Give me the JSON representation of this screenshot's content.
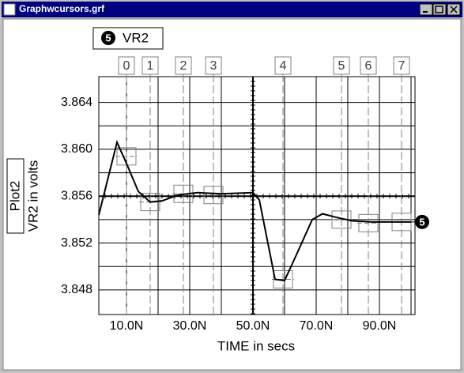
{
  "window": {
    "title": "Graphwcursors.grf"
  },
  "chart_data": {
    "type": "line",
    "legend_label": "VR2",
    "plot_label": "Plot2",
    "xlabel": "TIME in secs",
    "ylabel": "VR2 in volts",
    "xlim": [
      1.25,
      101.25
    ],
    "ylim": [
      3.8459,
      3.8662
    ],
    "xticks": [
      {
        "value": 10,
        "label": "10.0N"
      },
      {
        "value": 30,
        "label": "30.0N"
      },
      {
        "value": 50,
        "label": "50.0N"
      },
      {
        "value": 70,
        "label": "70.0N"
      },
      {
        "value": 90,
        "label": "90.0N"
      }
    ],
    "yticks": [
      {
        "value": 3.848,
        "label": "3.848"
      },
      {
        "value": 3.852,
        "label": "3.852"
      },
      {
        "value": 3.856,
        "label": "3.856"
      },
      {
        "value": 3.86,
        "label": "3.860"
      },
      {
        "value": 3.864,
        "label": "3.864"
      }
    ],
    "x_minor_grid": [
      20,
      40,
      60,
      80,
      100
    ],
    "y_minor_grid": [
      3.85,
      3.854,
      3.858,
      3.862
    ],
    "x_axis_at": 50,
    "y_axis_at": 3.856,
    "grid": true,
    "series": [
      {
        "name": "VR2",
        "marker_label": "5",
        "color": "#000000",
        "x": [
          1.25,
          7,
          10,
          13.75,
          17.5,
          21.25,
          26.25,
          32.5,
          40,
          50,
          52,
          54.5,
          57,
          60,
          63.75,
          68.75,
          72,
          76.25,
          81.25,
          87.5,
          100
        ],
        "values": [
          3.8544,
          3.8606,
          3.8588,
          3.8564,
          3.8555,
          3.8556,
          3.8561,
          3.8563,
          3.8562,
          3.8563,
          3.8557,
          3.8523,
          3.8489,
          3.8488,
          3.851,
          3.854,
          3.8545,
          3.8542,
          3.8539,
          3.8538,
          3.8538
        ]
      }
    ],
    "cursors": [
      {
        "label": "0",
        "x": 10,
        "y": 3.8594
      },
      {
        "label": "1",
        "x": 17.5,
        "y": 3.8555
      },
      {
        "label": "2",
        "x": 28,
        "y": 3.8562
      },
      {
        "label": "3",
        "x": 37.5,
        "y": 3.8561
      },
      {
        "label": "4",
        "x": 59.5,
        "y": 3.8489
      },
      {
        "label": "5",
        "x": 78,
        "y": 3.854
      },
      {
        "label": "6",
        "x": 86.5,
        "y": 3.8537
      },
      {
        "label": "7",
        "x": 97,
        "y": 3.8538
      }
    ]
  }
}
